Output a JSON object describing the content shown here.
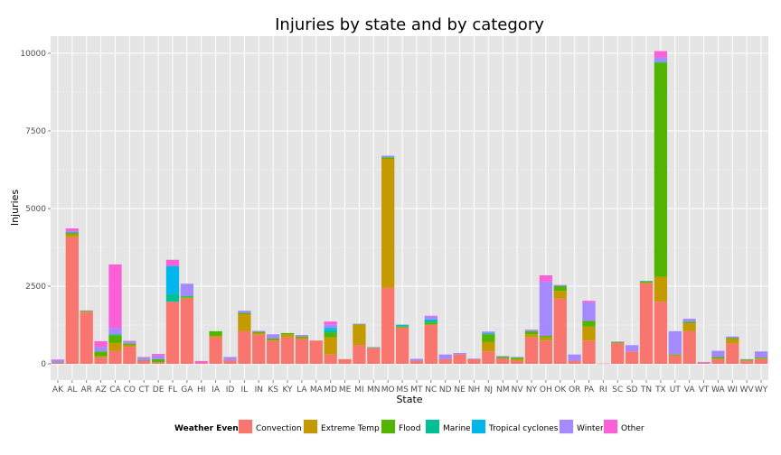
{
  "chart_data": {
    "type": "bar",
    "stacked": true,
    "title": "Injuries by state and by category",
    "xlabel": "State",
    "ylabel": "Injuries",
    "ylim": [
      0,
      10400
    ],
    "yticks": [
      0,
      2500,
      5000,
      7500,
      10000
    ],
    "grid": true,
    "legend_position": "bottom",
    "legend_title": "Weather Event",
    "categories": [
      "AK",
      "AL",
      "AR",
      "AZ",
      "CA",
      "CO",
      "CT",
      "DE",
      "FL",
      "GA",
      "HI",
      "IA",
      "ID",
      "IL",
      "IN",
      "KS",
      "KY",
      "LA",
      "MA",
      "MD",
      "ME",
      "MI",
      "MN",
      "MO",
      "MS",
      "MT",
      "NC",
      "ND",
      "NE",
      "NH",
      "NJ",
      "NM",
      "NV",
      "NY",
      "OH",
      "OK",
      "OR",
      "PA",
      "RI",
      "SC",
      "SD",
      "TN",
      "TX",
      "UT",
      "VA",
      "VT",
      "WA",
      "WI",
      "WV",
      "WY"
    ],
    "series": [
      {
        "name": "Convection",
        "color": "#F8766D",
        "values": [
          30,
          4080,
          1650,
          200,
          420,
          550,
          100,
          50,
          2000,
          2100,
          30,
          850,
          120,
          1050,
          950,
          750,
          850,
          800,
          750,
          300,
          150,
          600,
          500,
          2450,
          1150,
          100,
          1250,
          150,
          300,
          150,
          400,
          180,
          100,
          850,
          750,
          2100,
          100,
          750,
          10,
          650,
          400,
          2600,
          2000,
          250,
          1050,
          40,
          150,
          650,
          80,
          150
        ]
      },
      {
        "name": "Extreme Temp",
        "color": "#C49A00",
        "values": [
          0,
          80,
          30,
          50,
          250,
          50,
          0,
          0,
          0,
          30,
          0,
          50,
          0,
          550,
          40,
          20,
          100,
          30,
          0,
          550,
          0,
          650,
          0,
          4150,
          30,
          0,
          20,
          0,
          0,
          0,
          300,
          0,
          50,
          100,
          100,
          250,
          0,
          450,
          0,
          30,
          0,
          20,
          800,
          30,
          250,
          0,
          20,
          150,
          30,
          20
        ]
      },
      {
        "name": "Flood",
        "color": "#53B400",
        "values": [
          10,
          50,
          20,
          150,
          250,
          50,
          20,
          100,
          0,
          30,
          0,
          150,
          0,
          40,
          40,
          50,
          40,
          50,
          0,
          150,
          0,
          20,
          20,
          50,
          20,
          0,
          60,
          0,
          0,
          0,
          250,
          50,
          50,
          100,
          50,
          150,
          0,
          180,
          0,
          20,
          0,
          30,
          6900,
          20,
          50,
          0,
          50,
          30,
          20,
          30
        ]
      },
      {
        "name": "Marine",
        "color": "#00C094",
        "values": [
          0,
          20,
          0,
          0,
          30,
          0,
          0,
          0,
          250,
          20,
          0,
          0,
          0,
          0,
          0,
          0,
          0,
          0,
          0,
          80,
          0,
          0,
          0,
          0,
          20,
          0,
          50,
          0,
          0,
          0,
          20,
          0,
          0,
          0,
          0,
          0,
          0,
          0,
          0,
          0,
          0,
          20,
          20,
          0,
          0,
          0,
          0,
          0,
          0,
          0
        ]
      },
      {
        "name": "Tropical cyclones",
        "color": "#00B6EB",
        "values": [
          0,
          0,
          0,
          0,
          0,
          0,
          0,
          0,
          900,
          0,
          0,
          0,
          0,
          0,
          0,
          0,
          0,
          0,
          0,
          80,
          0,
          0,
          0,
          0,
          40,
          0,
          50,
          0,
          0,
          0,
          20,
          0,
          0,
          0,
          0,
          0,
          0,
          0,
          0,
          0,
          0,
          0,
          0,
          0,
          0,
          0,
          0,
          0,
          0,
          0
        ]
      },
      {
        "name": "Winter",
        "color": "#A58AFF",
        "values": [
          80,
          30,
          10,
          150,
          200,
          70,
          80,
          120,
          0,
          400,
          0,
          0,
          100,
          70,
          30,
          130,
          0,
          50,
          0,
          100,
          0,
          20,
          20,
          50,
          0,
          60,
          100,
          150,
          50,
          20,
          50,
          20,
          20,
          50,
          1750,
          40,
          200,
          600,
          0,
          20,
          200,
          0,
          150,
          750,
          100,
          20,
          200,
          50,
          20,
          200
        ]
      },
      {
        "name": "Other",
        "color": "#FB61D7",
        "values": [
          20,
          100,
          10,
          180,
          2050,
          20,
          20,
          50,
          200,
          0,
          60,
          0,
          0,
          0,
          0,
          0,
          0,
          0,
          0,
          100,
          0,
          0,
          0,
          0,
          0,
          0,
          20,
          0,
          0,
          0,
          0,
          0,
          0,
          0,
          200,
          0,
          0,
          50,
          0,
          0,
          0,
          0,
          200,
          0,
          0,
          0,
          0,
          0,
          0,
          0
        ]
      }
    ]
  }
}
